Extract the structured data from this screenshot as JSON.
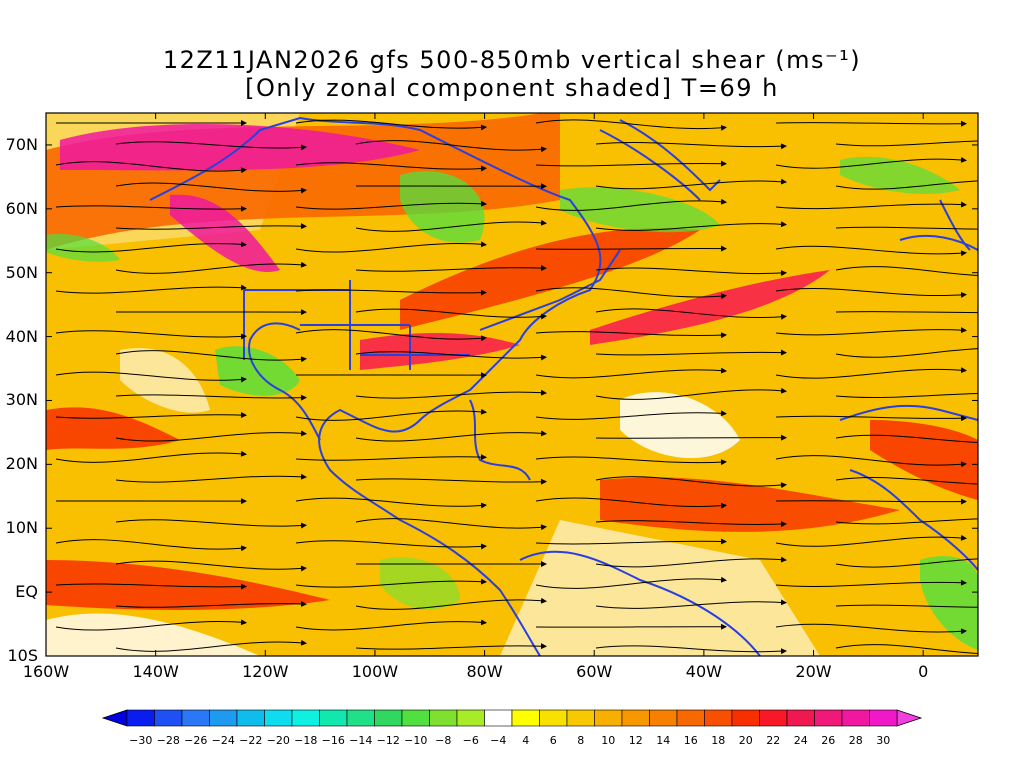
{
  "title": {
    "line1": "12Z11JAN2026 gfs 500-850mb vertical shear (ms⁻¹)",
    "line2": "[Only zonal component shaded] T=69 h"
  },
  "map": {
    "lat_ticks": [
      "70N",
      "60N",
      "50N",
      "40N",
      "30N",
      "20N",
      "10N",
      "EQ",
      "10S"
    ],
    "lat_values": [
      70,
      60,
      50,
      40,
      30,
      20,
      10,
      0,
      -10
    ],
    "lon_ticks": [
      "160W",
      "140W",
      "120W",
      "100W",
      "80W",
      "60W",
      "40W",
      "20W",
      "0"
    ],
    "lon_values": [
      -160,
      -140,
      -120,
      -100,
      -80,
      -60,
      -40,
      -20,
      0
    ],
    "lon_range": [
      -160,
      10
    ],
    "lat_range": [
      -10,
      75
    ],
    "coastline_color": "#2a3fe0",
    "streamline_color": "#000000"
  },
  "colorbar": {
    "labels": [
      "-30",
      "-28",
      "-26",
      "-24",
      "-22",
      "-20",
      "-18",
      "-16",
      "-14",
      "-12",
      "-10",
      "-8",
      "-6",
      "-4",
      "4",
      "6",
      "8",
      "10",
      "12",
      "14",
      "16",
      "18",
      "20",
      "22",
      "24",
      "26",
      "28",
      "30"
    ],
    "colors": [
      "#0a1cf0",
      "#1e50f5",
      "#2a78f5",
      "#1e9af0",
      "#10bcec",
      "#10dcf0",
      "#10f0e0",
      "#10e8b0",
      "#20e088",
      "#30d860",
      "#50e040",
      "#80e030",
      "#a8ec28",
      "#ffffff",
      "#ffff00",
      "#f8e000",
      "#f8c800",
      "#f8b000",
      "#f89800",
      "#f88000",
      "#f86800",
      "#f85000",
      "#f83000",
      "#f81828",
      "#f01850",
      "#f01878",
      "#f018a0",
      "#f018c8"
    ],
    "low_arrow_color": "#0000e0",
    "high_arrow_color": "#f040e0"
  }
}
